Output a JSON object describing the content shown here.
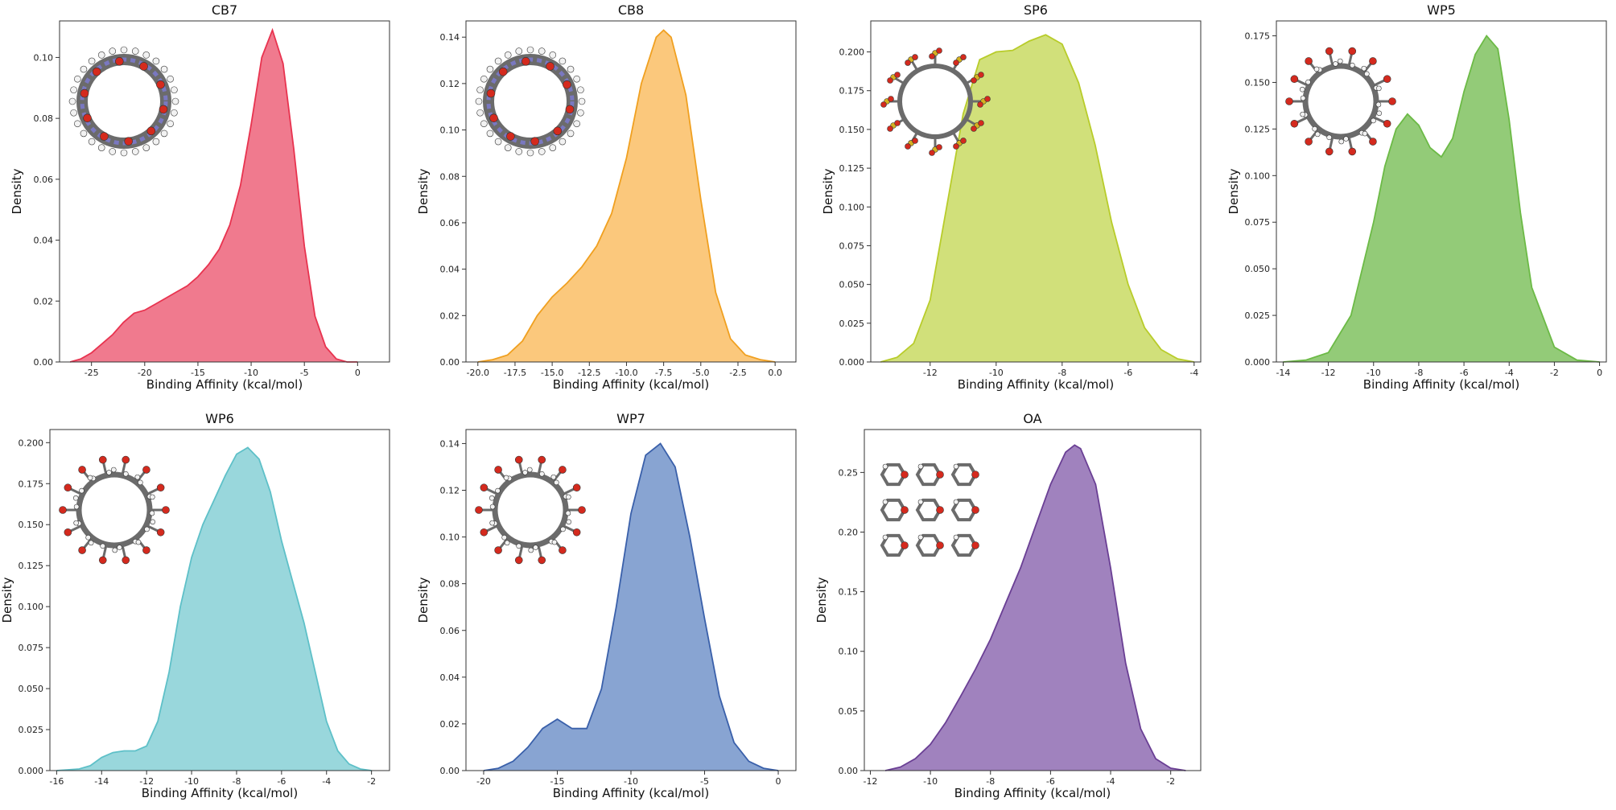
{
  "chart_data": [
    {
      "type": "area",
      "title": "CB7",
      "xlabel": "Binding Affinity (kcal/mol)",
      "ylabel": "Density",
      "color": "#e8334f",
      "fill": "#f07a8e",
      "molecule": "cucurbituril",
      "xlim": [
        -28,
        3
      ],
      "ylim": [
        0,
        0.112
      ],
      "xticks": [
        -25,
        -20,
        -15,
        -10,
        -5,
        0
      ],
      "xtick_labels": [
        "-25",
        "-20",
        "-15",
        "-10",
        "-5",
        "0"
      ],
      "yticks": [
        0,
        0.02,
        0.04,
        0.06,
        0.08,
        0.1
      ],
      "ytick_labels": [
        "0.00",
        "0.02",
        "0.04",
        "0.06",
        "0.08",
        "0.10"
      ],
      "x": [
        -27,
        -26,
        -25,
        -24,
        -23,
        -22,
        -21,
        -20,
        -19,
        -18,
        -17,
        -16,
        -15,
        -14,
        -13,
        -12,
        -11,
        -10,
        -9,
        -8,
        -7,
        -6,
        -5,
        -4,
        -3,
        -2,
        -1,
        0
      ],
      "y": [
        0.0,
        0.001,
        0.003,
        0.006,
        0.009,
        0.013,
        0.016,
        0.017,
        0.019,
        0.021,
        0.023,
        0.025,
        0.028,
        0.032,
        0.037,
        0.045,
        0.058,
        0.078,
        0.1,
        0.109,
        0.098,
        0.07,
        0.038,
        0.015,
        0.005,
        0.001,
        0.0,
        0.0
      ]
    },
    {
      "type": "area",
      "title": "CB8",
      "xlabel": "Binding Affinity (kcal/mol)",
      "ylabel": "Density",
      "color": "#f0a020",
      "fill": "#fbc87c",
      "molecule": "cucurbituril",
      "xlim": [
        -20.8,
        1.4
      ],
      "ylim": [
        0,
        0.147
      ],
      "xticks": [
        -20,
        -17.5,
        -15,
        -12.5,
        -10,
        -7.5,
        -5,
        -2.5,
        0
      ],
      "xtick_labels": [
        "-20.0",
        "-17.5",
        "-15.0",
        "-12.5",
        "-10.0",
        "-7.5",
        "-5.0",
        "-2.5",
        "0.0"
      ],
      "yticks": [
        0,
        0.02,
        0.04,
        0.06,
        0.08,
        0.1,
        0.12,
        0.14
      ],
      "ytick_labels": [
        "0.00",
        "0.02",
        "0.04",
        "0.06",
        "0.08",
        "0.10",
        "0.12",
        "0.14"
      ],
      "x": [
        -20,
        -19,
        -18,
        -17,
        -16,
        -15,
        -14,
        -13,
        -12,
        -11,
        -10,
        -9,
        -8,
        -7.5,
        -7,
        -6,
        -5,
        -4,
        -3,
        -2,
        -1,
        0
      ],
      "y": [
        0.0,
        0.001,
        0.003,
        0.009,
        0.02,
        0.028,
        0.034,
        0.041,
        0.05,
        0.064,
        0.088,
        0.12,
        0.14,
        0.143,
        0.14,
        0.115,
        0.07,
        0.03,
        0.01,
        0.003,
        0.001,
        0.0
      ]
    },
    {
      "type": "area",
      "title": "SP6",
      "xlabel": "Binding Affinity (kcal/mol)",
      "ylabel": "Density",
      "color": "#b8cc2a",
      "fill": "#d1e07a",
      "molecule": "pillararene-sulfonate",
      "xlim": [
        -13.8,
        -3.8
      ],
      "ylim": [
        0,
        0.22
      ],
      "xticks": [
        -12,
        -10,
        -8,
        -6,
        -4
      ],
      "xtick_labels": [
        "-12",
        "-10",
        "-8",
        "-6",
        "-4"
      ],
      "yticks": [
        0,
        0.025,
        0.05,
        0.075,
        0.1,
        0.125,
        0.15,
        0.175,
        0.2
      ],
      "ytick_labels": [
        "0.000",
        "0.025",
        "0.050",
        "0.075",
        "0.100",
        "0.125",
        "0.150",
        "0.175",
        "0.200"
      ],
      "x": [
        -13.5,
        -13,
        -12.5,
        -12,
        -11.5,
        -11,
        -10.5,
        -10,
        -9.5,
        -9,
        -8.5,
        -8,
        -7.5,
        -7,
        -6.5,
        -6,
        -5.5,
        -5,
        -4.5,
        -4
      ],
      "y": [
        0.0,
        0.003,
        0.012,
        0.04,
        0.1,
        0.16,
        0.195,
        0.2,
        0.201,
        0.207,
        0.211,
        0.205,
        0.18,
        0.14,
        0.09,
        0.05,
        0.022,
        0.008,
        0.002,
        0.0
      ]
    },
    {
      "type": "area",
      "title": "WP5",
      "xlabel": "Binding Affinity (kcal/mol)",
      "ylabel": "Density",
      "color": "#6cba46",
      "fill": "#93cb78",
      "molecule": "pillararene-carboxylate",
      "xlim": [
        -14.3,
        0.3
      ],
      "ylim": [
        0,
        0.183
      ],
      "xticks": [
        -14,
        -12,
        -10,
        -8,
        -6,
        -4,
        -2,
        0
      ],
      "xtick_labels": [
        "-14",
        "-12",
        "-10",
        "-8",
        "-6",
        "-4",
        "-2",
        "0"
      ],
      "yticks": [
        0,
        0.025,
        0.05,
        0.075,
        0.1,
        0.125,
        0.15,
        0.175
      ],
      "ytick_labels": [
        "0.000",
        "0.025",
        "0.050",
        "0.075",
        "0.100",
        "0.125",
        "0.150",
        "0.175"
      ],
      "x": [
        -14,
        -13,
        -12,
        -11,
        -10,
        -9.5,
        -9,
        -8.5,
        -8,
        -7.5,
        -7,
        -6.5,
        -6,
        -5.5,
        -5,
        -4.5,
        -4,
        -3.5,
        -3,
        -2,
        -1,
        0
      ],
      "y": [
        0.0,
        0.001,
        0.005,
        0.025,
        0.075,
        0.105,
        0.125,
        0.133,
        0.127,
        0.115,
        0.11,
        0.12,
        0.145,
        0.165,
        0.175,
        0.168,
        0.13,
        0.08,
        0.04,
        0.008,
        0.001,
        0.0
      ]
    },
    {
      "type": "area",
      "title": "WP6",
      "xlabel": "Binding Affinity (kcal/mol)",
      "ylabel": "Density",
      "color": "#5ec0c8",
      "fill": "#99d7dc",
      "molecule": "pillararene-carboxylate",
      "xlim": [
        -16.3,
        -1.2
      ],
      "ylim": [
        0,
        0.208
      ],
      "xticks": [
        -16,
        -14,
        -12,
        -10,
        -8,
        -6,
        -4,
        -2
      ],
      "xtick_labels": [
        "-16",
        "-14",
        "-12",
        "-10",
        "-8",
        "-6",
        "-4",
        "-2"
      ],
      "yticks": [
        0,
        0.025,
        0.05,
        0.075,
        0.1,
        0.125,
        0.15,
        0.175,
        0.2
      ],
      "ytick_labels": [
        "0.000",
        "0.025",
        "0.050",
        "0.075",
        "0.100",
        "0.125",
        "0.150",
        "0.175",
        "0.200"
      ],
      "x": [
        -16,
        -15,
        -14.5,
        -14,
        -13.5,
        -13,
        -12.5,
        -12,
        -11.5,
        -11,
        -10.5,
        -10,
        -9.5,
        -9,
        -8.5,
        -8,
        -7.5,
        -7,
        -6.5,
        -6,
        -5.5,
        -5,
        -4.5,
        -4,
        -3.5,
        -3,
        -2.5,
        -2
      ],
      "y": [
        0.0,
        0.001,
        0.003,
        0.008,
        0.011,
        0.012,
        0.012,
        0.015,
        0.03,
        0.06,
        0.1,
        0.13,
        0.15,
        0.165,
        0.18,
        0.193,
        0.197,
        0.19,
        0.17,
        0.14,
        0.115,
        0.09,
        0.06,
        0.03,
        0.012,
        0.004,
        0.001,
        0.0
      ]
    },
    {
      "type": "area",
      "title": "WP7",
      "xlabel": "Binding Affinity (kcal/mol)",
      "ylabel": "Density",
      "color": "#3a60aa",
      "fill": "#88a4d2",
      "molecule": "pillararene-carboxylate",
      "xlim": [
        -21.2,
        1.2
      ],
      "ylim": [
        0,
        0.146
      ],
      "xticks": [
        -20,
        -15,
        -10,
        -5,
        0
      ],
      "xtick_labels": [
        "-20",
        "-15",
        "-10",
        "-5",
        "0"
      ],
      "yticks": [
        0,
        0.02,
        0.04,
        0.06,
        0.08,
        0.1,
        0.12,
        0.14
      ],
      "ytick_labels": [
        "0.00",
        "0.02",
        "0.04",
        "0.06",
        "0.08",
        "0.10",
        "0.12",
        "0.14"
      ],
      "x": [
        -20,
        -19,
        -18,
        -17,
        -16,
        -15,
        -14,
        -13,
        -12,
        -11,
        -10,
        -9,
        -8,
        -7,
        -6,
        -5,
        -4,
        -3,
        -2,
        -1,
        0
      ],
      "y": [
        0.0,
        0.001,
        0.004,
        0.01,
        0.018,
        0.022,
        0.018,
        0.018,
        0.035,
        0.07,
        0.11,
        0.135,
        0.14,
        0.13,
        0.1,
        0.065,
        0.032,
        0.012,
        0.004,
        0.001,
        0.0
      ]
    },
    {
      "type": "area",
      "title": "OA",
      "xlabel": "Binding Affinity (kcal/mol)",
      "ylabel": "Density",
      "color": "#6a3f94",
      "fill": "#a082be",
      "molecule": "octa-acid",
      "xlim": [
        -12.2,
        -1.0
      ],
      "ylim": [
        0,
        0.286
      ],
      "xticks": [
        -12,
        -10,
        -8,
        -6,
        -4,
        -2
      ],
      "xtick_labels": [
        "-12",
        "-10",
        "-8",
        "-6",
        "-4",
        "-2"
      ],
      "yticks": [
        0,
        0.05,
        0.1,
        0.15,
        0.2,
        0.25
      ],
      "ytick_labels": [
        "0.00",
        "0.05",
        "0.10",
        "0.15",
        "0.20",
        "0.25"
      ],
      "x": [
        -11.5,
        -11,
        -10.5,
        -10,
        -9.5,
        -9,
        -8.5,
        -8,
        -7.5,
        -7,
        -6.5,
        -6,
        -5.5,
        -5.2,
        -5,
        -4.5,
        -4,
        -3.5,
        -3,
        -2.5,
        -2,
        -1.5
      ],
      "y": [
        0.0,
        0.003,
        0.01,
        0.022,
        0.04,
        0.062,
        0.085,
        0.11,
        0.14,
        0.17,
        0.205,
        0.24,
        0.267,
        0.273,
        0.27,
        0.24,
        0.17,
        0.09,
        0.035,
        0.01,
        0.002,
        0.0
      ]
    }
  ]
}
